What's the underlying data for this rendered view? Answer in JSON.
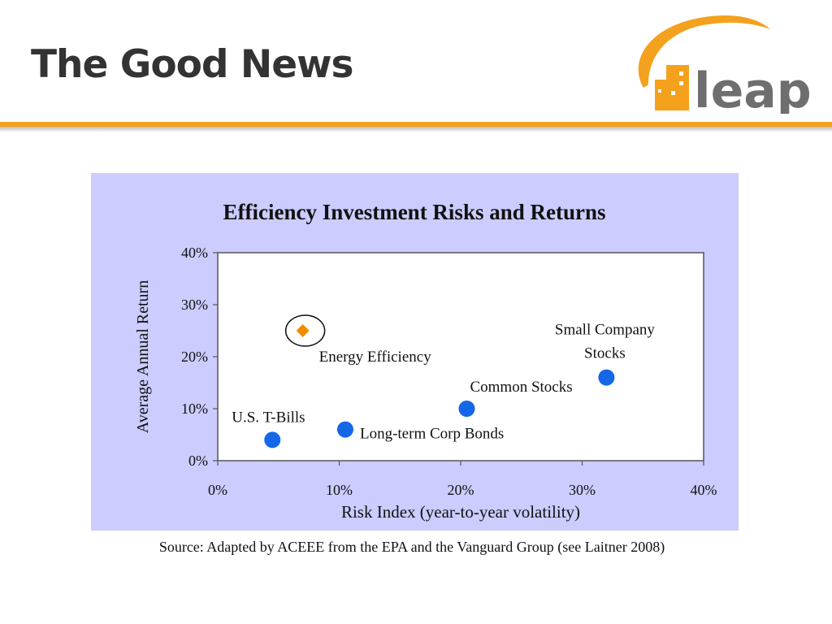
{
  "slide": {
    "title": "The Good News",
    "logo_text": "leap",
    "source": "Source: Adapted by ACEEE from the EPA and  the Vanguard Group (see Laitner 2008)"
  },
  "colors": {
    "accent_orange": "#f4a11d",
    "logo_gray": "#6e6e6e",
    "chart_background": "#ccccff",
    "point_blue": "#1467e6",
    "highlight_orange": "#f08c00"
  },
  "chart_data": {
    "type": "scatter",
    "title": "Efficiency Investment Risks and Returns",
    "xlabel": "Risk Index (year-to-year volatility)",
    "ylabel": "Average Annual Return",
    "xlim": [
      0,
      40
    ],
    "ylim": [
      0,
      40
    ],
    "xticks": [
      "0%",
      "10%",
      "20%",
      "30%",
      "40%"
    ],
    "yticks": [
      "0%",
      "10%",
      "20%",
      "30%",
      "40%"
    ],
    "grid": false,
    "points": [
      {
        "label": "U.S. T-Bills",
        "x": 4.5,
        "y": 4,
        "marker": "circle",
        "highlight": false
      },
      {
        "label": "Long-term Corp Bonds",
        "x": 10.5,
        "y": 6,
        "marker": "circle",
        "highlight": false
      },
      {
        "label": "Common Stocks",
        "x": 20.5,
        "y": 10,
        "marker": "circle",
        "highlight": false
      },
      {
        "label": "Small Company Stocks",
        "label_lines": [
          "Small Company",
          "Stocks"
        ],
        "x": 32,
        "y": 16,
        "marker": "circle",
        "highlight": false
      },
      {
        "label": "Energy Efficiency",
        "x": 7,
        "y": 25,
        "marker": "diamond",
        "highlight": true
      }
    ]
  }
}
